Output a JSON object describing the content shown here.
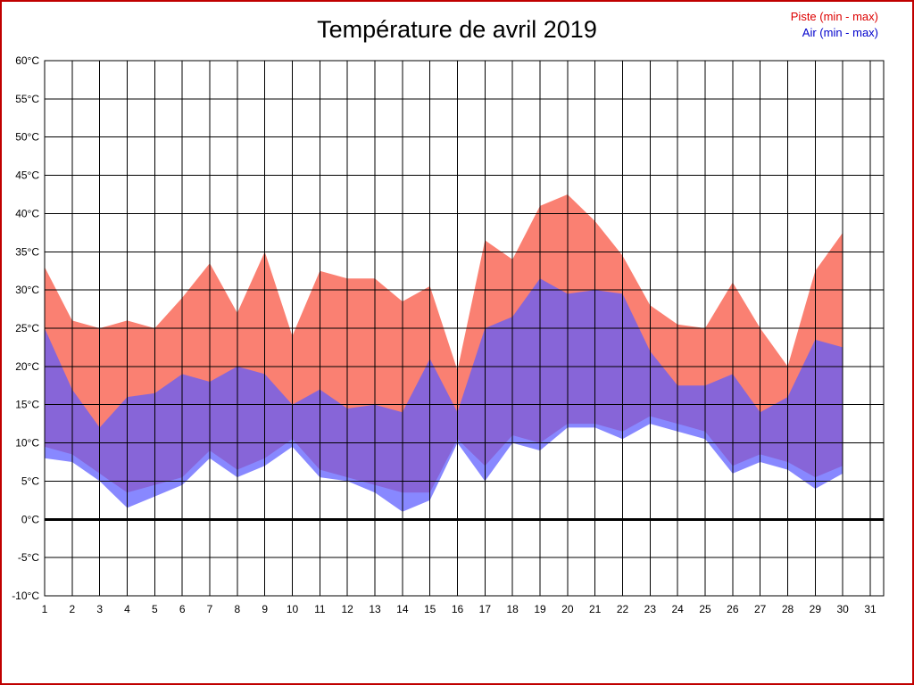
{
  "title": "Température de avril 2019",
  "legend": {
    "piste_label": "Piste (min - max)",
    "air_label": "Air (min - max)",
    "piste_color": "#dd0000",
    "air_color": "#0000cc"
  },
  "chart_data": {
    "type": "area",
    "title": "Température de avril 2019",
    "xlabel": "",
    "ylabel": "",
    "yunit": "°C",
    "ylim": [
      -10,
      60
    ],
    "ytick_step": 5,
    "xlim": [
      1,
      31
    ],
    "x": [
      1,
      2,
      3,
      4,
      5,
      6,
      7,
      8,
      9,
      10,
      11,
      12,
      13,
      14,
      15,
      16,
      17,
      18,
      19,
      20,
      21,
      22,
      23,
      24,
      25,
      26,
      27,
      28,
      29,
      30
    ],
    "series": [
      {
        "name": "piste_max",
        "values": [
          33,
          26,
          25,
          26,
          25,
          29,
          33.5,
          27,
          35,
          24,
          32.5,
          31.5,
          31.5,
          28.5,
          30.5,
          19.5,
          36.5,
          34,
          41,
          42.5,
          39,
          34.5,
          28,
          25.5,
          25,
          31,
          25,
          20,
          32.5,
          37.5
        ]
      },
      {
        "name": "piste_min",
        "values": [
          9.5,
          8.5,
          6,
          3.5,
          4.5,
          5.5,
          9,
          6.5,
          8,
          10.5,
          6.5,
          5.5,
          4.5,
          3.5,
          3.5,
          10.5,
          7,
          11,
          10,
          12.5,
          12.5,
          11.5,
          13.5,
          12.5,
          11.5,
          7,
          8.5,
          7.5,
          5.5,
          7
        ]
      },
      {
        "name": "air_max",
        "values": [
          25,
          17,
          12,
          16,
          16.5,
          19,
          18,
          20,
          19,
          15,
          17,
          14.5,
          15,
          14,
          21,
          14,
          25,
          26.5,
          31.5,
          29.5,
          30,
          29.5,
          22,
          17.5,
          17.5,
          19,
          14,
          16,
          23.5,
          22.5
        ]
      },
      {
        "name": "air_min",
        "values": [
          8,
          7.5,
          5,
          1.5,
          3,
          4.5,
          8,
          5.5,
          7,
          9.5,
          5.5,
          5,
          3.5,
          1,
          2.5,
          10,
          5,
          10,
          9,
          12,
          12,
          10.5,
          12.5,
          11.5,
          10.5,
          6,
          7.5,
          6.5,
          4,
          6
        ]
      }
    ],
    "legend_entries": [
      "Piste (min - max)",
      "Air (min - max)"
    ],
    "legend_position": "top-right",
    "grid": true,
    "colors": {
      "piste_band": "#fa8072",
      "air_band": "#5a5aff",
      "air_band_opacity": 0.72,
      "grid_line": "#000000",
      "zero_line": "#000000"
    },
    "zero_line_at": 0
  }
}
